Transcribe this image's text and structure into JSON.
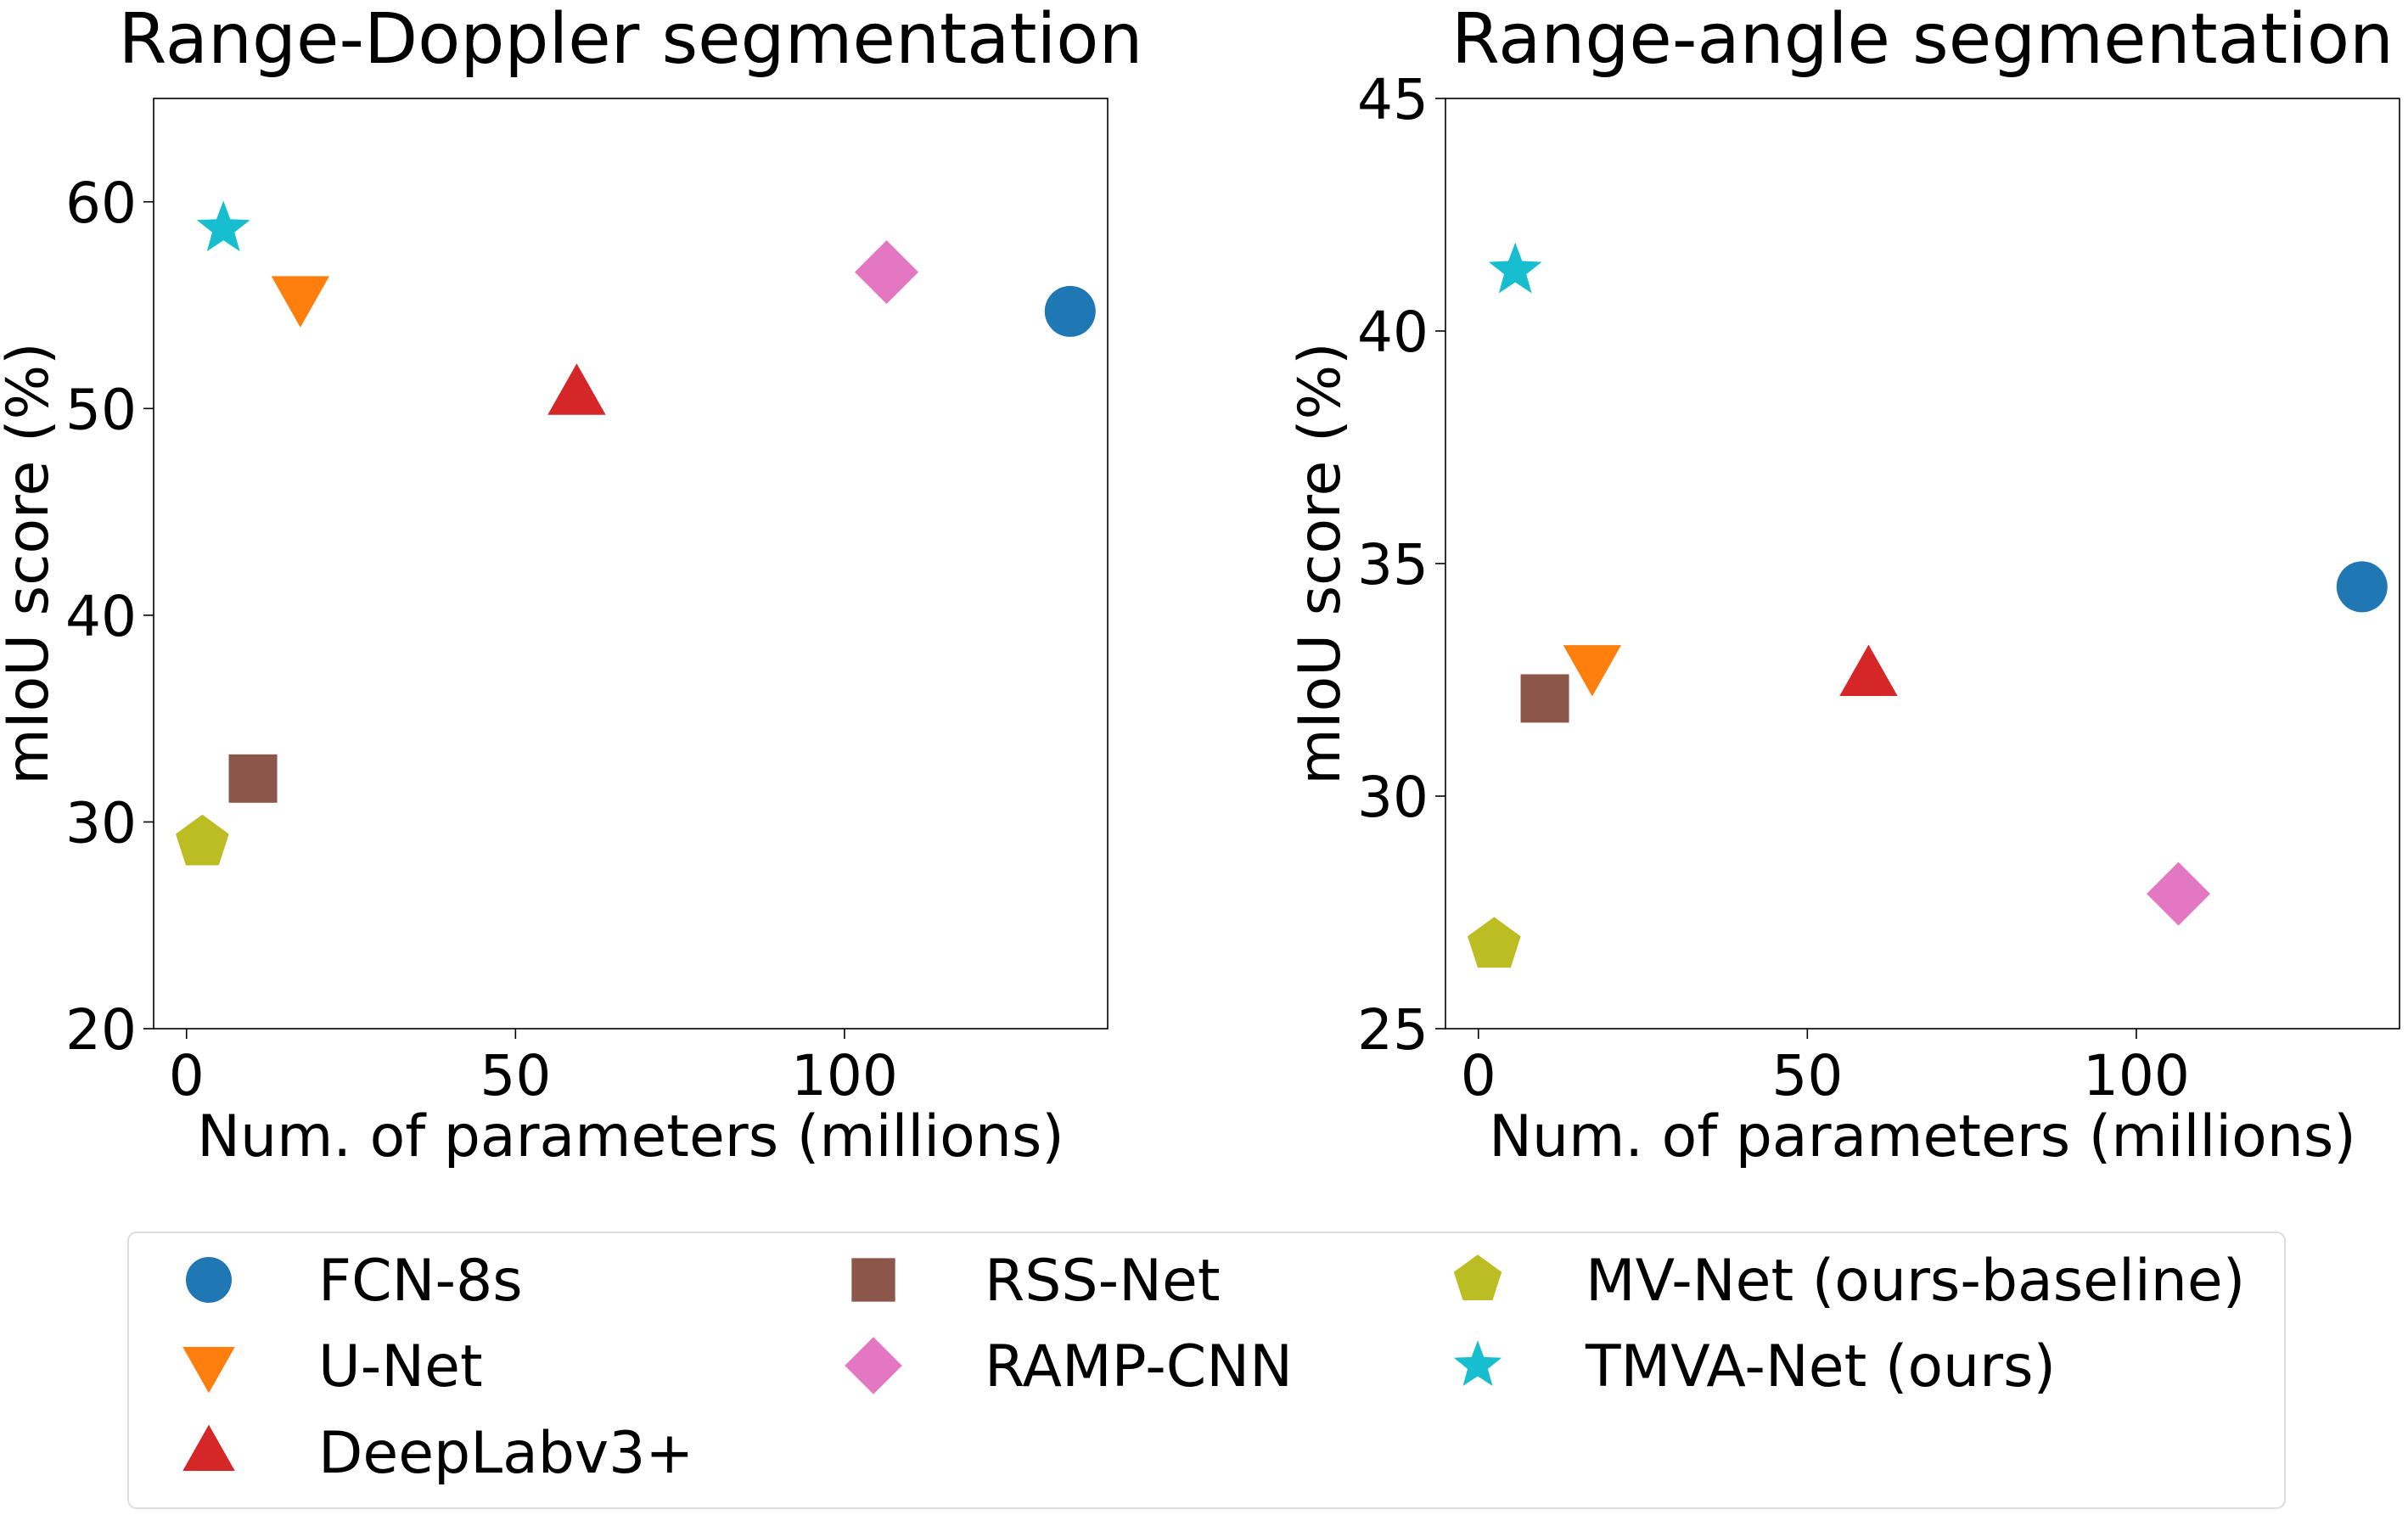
{
  "chart_data": [
    {
      "type": "scatter",
      "title": "Range-Doppler segmentation",
      "xlabel": "Num. of parameters (millions)",
      "ylabel": "mIoU score (%)",
      "xlim": [
        -5,
        140
      ],
      "ylim": [
        20,
        65
      ],
      "xticks": [
        0,
        50,
        100
      ],
      "yticks": [
        20,
        30,
        40,
        50,
        60
      ],
      "grid": false,
      "points": [
        {
          "name": "FCN-8s",
          "x": 134.3,
          "y": 54.7
        },
        {
          "name": "U-Net",
          "x": 17.3,
          "y": 55.4
        },
        {
          "name": "DeepLabv3+",
          "x": 59.3,
          "y": 50.7
        },
        {
          "name": "RSS-Net",
          "x": 10.1,
          "y": 32.1
        },
        {
          "name": "RAMP-CNN",
          "x": 106.4,
          "y": 56.6
        },
        {
          "name": "MV-Net (ours-baseline)",
          "x": 2.4,
          "y": 29.0
        },
        {
          "name": "TMVA-Net (ours)",
          "x": 5.6,
          "y": 58.7
        }
      ]
    },
    {
      "type": "scatter",
      "title": "Range-angle segmentation",
      "xlabel": "Num. of parameters (millions)",
      "ylabel": "mIoU score (%)",
      "xlim": [
        -5,
        140
      ],
      "ylim": [
        25,
        45
      ],
      "xticks": [
        0,
        50,
        100
      ],
      "yticks": [
        25,
        30,
        35,
        40,
        45
      ],
      "grid": false,
      "points": [
        {
          "name": "FCN-8s",
          "x": 134.3,
          "y": 34.5
        },
        {
          "name": "U-Net",
          "x": 17.3,
          "y": 32.8
        },
        {
          "name": "DeepLabv3+",
          "x": 59.3,
          "y": 32.6
        },
        {
          "name": "RSS-Net",
          "x": 10.1,
          "y": 32.1
        },
        {
          "name": "RAMP-CNN",
          "x": 106.4,
          "y": 27.9
        },
        {
          "name": "MV-Net (ours-baseline)",
          "x": 2.4,
          "y": 26.8
        },
        {
          "name": "TMVA-Net (ours)",
          "x": 5.6,
          "y": 41.3
        }
      ]
    }
  ],
  "legend": {
    "placement": "bottom",
    "entries": [
      {
        "name": "FCN-8s",
        "marker": "circle",
        "color": "#1f77b4"
      },
      {
        "name": "U-Net",
        "marker": "triangle-down",
        "color": "#ff7f0e"
      },
      {
        "name": "DeepLabv3+",
        "marker": "triangle-up",
        "color": "#d62728"
      },
      {
        "name": "RSS-Net",
        "marker": "square",
        "color": "#8c564b"
      },
      {
        "name": "RAMP-CNN",
        "marker": "diamond",
        "color": "#e377c2"
      },
      {
        "name": "MV-Net (ours-baseline)",
        "marker": "pentagon",
        "color": "#bcbd22"
      },
      {
        "name": "TMVA-Net (ours)",
        "marker": "star",
        "color": "#17becf"
      }
    ]
  }
}
